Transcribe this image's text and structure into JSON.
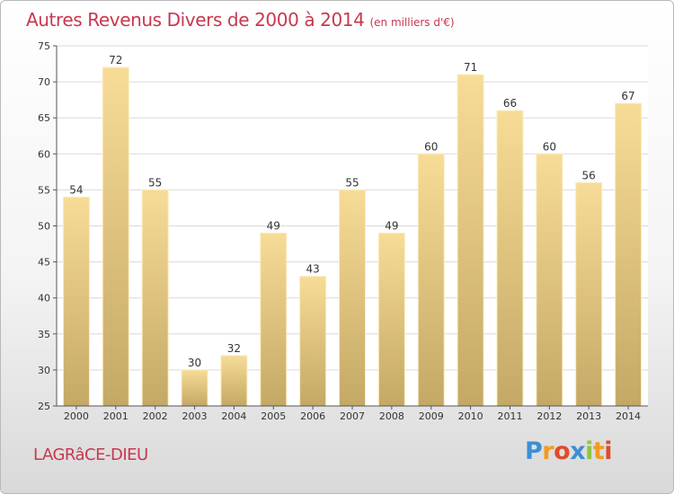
{
  "header": {
    "title": "Autres Revenus Divers de 2000 à 2014",
    "unit": "(en milliers d'€)"
  },
  "footer": {
    "place": "LAGRâCE-DIEU",
    "brand": "Proxiti"
  },
  "colors": {
    "title": "#c9374f",
    "bar_top": "#f7dc97",
    "bar_bottom": "#c4a865",
    "grid": "#d9d9d9"
  },
  "chart_data": {
    "type": "bar",
    "title": "Autres Revenus Divers de 2000 à 2014",
    "categories": [
      "2000",
      "2001",
      "2002",
      "2003",
      "2004",
      "2005",
      "2006",
      "2007",
      "2008",
      "2009",
      "2010",
      "2011",
      "2012",
      "2013",
      "2014"
    ],
    "values": [
      54,
      72,
      55,
      30,
      32,
      49,
      43,
      55,
      49,
      60,
      71,
      66,
      60,
      56,
      67
    ],
    "ylim": [
      25,
      75
    ],
    "yticks": [
      25,
      30,
      35,
      40,
      45,
      50,
      55,
      60,
      65,
      70,
      75
    ],
    "grid": true,
    "data_labels": true
  }
}
